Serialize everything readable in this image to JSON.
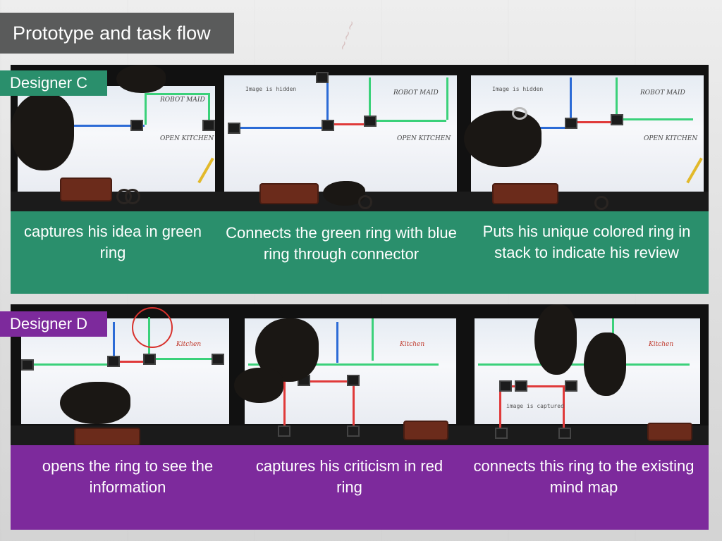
{
  "title": "Prototype and task flow",
  "designer_c": {
    "label": "Designer C",
    "captions": [
      "captures his idea in green ring",
      "Connects the green ring with blue ring through connector",
      "Puts his unique colored ring in stack to indicate his review"
    ]
  },
  "designer_d": {
    "label": "Designer D",
    "captions": [
      "opens the ring to see the information",
      "captures his criticism in red ring",
      "connects this ring to the existing mind map"
    ]
  },
  "colors": {
    "designer_c": "#2a8f6c",
    "designer_d": "#7d2a9c",
    "title_bg": "#5a5b5b"
  }
}
